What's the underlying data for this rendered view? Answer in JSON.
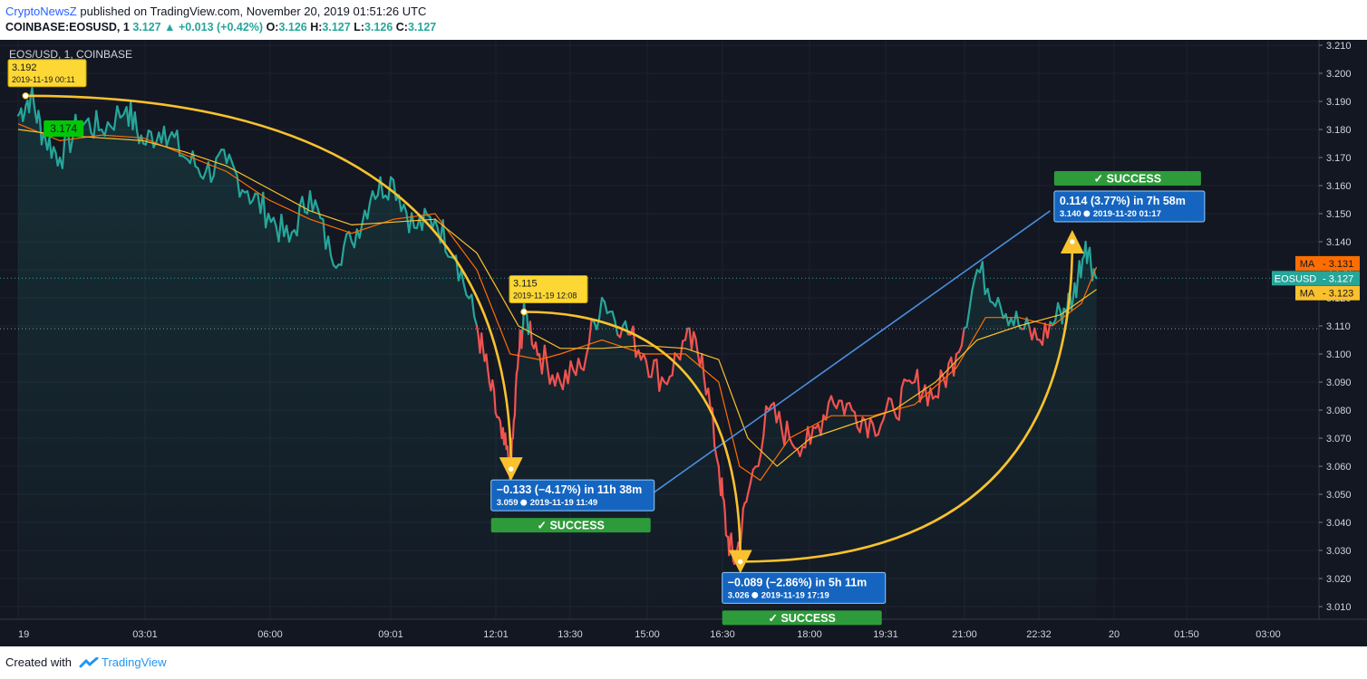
{
  "header": {
    "brand": "CryptoNewsZ",
    "published": "published on TradingView.com, November 20, 2019 01:51:26 UTC",
    "symbol": "COINBASE:EOSUSD, 1",
    "last": "3.127",
    "change": "+0.013 (+0.42%)",
    "o_label": "O:",
    "o": "3.126",
    "h_label": "H:",
    "h": "3.127",
    "l_label": "L:",
    "l": "3.126",
    "c_label": "C:",
    "c": "3.127"
  },
  "footer": {
    "created": "Created with",
    "tv": "TradingView"
  },
  "colors": {
    "background": "#131722",
    "up": "#26a69a",
    "down": "#ef5350",
    "ma_fast": "#ff6d00",
    "ma_slow": "#fbc02d",
    "arc": "#f9c22e",
    "trendline": "#4a90e2",
    "success": "#2e9b3a",
    "measure": "#1565c0"
  },
  "chart_data": {
    "type": "line",
    "title": "EOS/USD, 1, COINBASE",
    "x_ticks": [
      "19",
      "03:01",
      "06:00",
      "09:01",
      "12:01",
      "13:30",
      "15:00",
      "16:30",
      "18:00",
      "19:31",
      "21:00",
      "22:32",
      "20",
      "01:50",
      "03:00"
    ],
    "y_ticks": [
      "3.210",
      "3.200",
      "3.190",
      "3.180",
      "3.170",
      "3.160",
      "3.150",
      "3.140",
      "3.130",
      "3.120",
      "3.110",
      "3.100",
      "3.090",
      "3.080",
      "3.070",
      "3.060",
      "3.050",
      "3.040",
      "3.030",
      "3.020",
      "3.010"
    ],
    "ylim": [
      3.005,
      3.215
    ],
    "x_unit": "hours since 2019-11-19 00:00 UTC",
    "series": [
      {
        "name": "EOSUSD",
        "x": [
          0,
          0.3,
          0.6,
          1.0,
          1.5,
          2.0,
          2.6,
          3.0,
          3.5,
          4.0,
          4.5,
          5.0,
          5.5,
          6.0,
          6.5,
          7.0,
          7.5,
          8.0,
          8.5,
          9.0,
          9.5,
          10.0,
          10.5,
          11.0,
          11.3,
          11.6,
          11.82,
          12.0,
          12.15,
          12.5,
          13.0,
          13.5,
          14.0,
          14.5,
          15.0,
          15.5,
          16.0,
          16.4,
          16.8,
          17.0,
          17.2,
          17.5,
          18.0,
          18.5,
          19.0,
          19.5,
          20.0,
          20.5,
          21.0,
          21.5,
          22.0,
          22.5,
          23.0,
          23.5,
          24.0,
          24.5,
          25.0,
          25.3,
          25.6,
          25.86
        ],
        "y": [
          3.185,
          3.192,
          3.178,
          3.17,
          3.183,
          3.18,
          3.188,
          3.175,
          3.181,
          3.17,
          3.165,
          3.168,
          3.158,
          3.15,
          3.14,
          3.158,
          3.135,
          3.14,
          3.158,
          3.162,
          3.145,
          3.148,
          3.135,
          3.11,
          3.09,
          3.07,
          3.059,
          3.1,
          3.115,
          3.1,
          3.09,
          3.095,
          3.12,
          3.11,
          3.1,
          3.09,
          3.105,
          3.1,
          3.06,
          3.035,
          3.026,
          3.05,
          3.08,
          3.07,
          3.068,
          3.085,
          3.08,
          3.075,
          3.08,
          3.09,
          3.085,
          3.1,
          3.13,
          3.12,
          3.11,
          3.105,
          3.115,
          3.12,
          3.14,
          3.127
        ]
      },
      {
        "name": "MA",
        "x": [
          0,
          1,
          2,
          3,
          4,
          5,
          6,
          7,
          8,
          9,
          10,
          11,
          11.8,
          12.5,
          13,
          14,
          15,
          16,
          16.8,
          17.3,
          17.8,
          18.5,
          19.5,
          20.5,
          21.5,
          22.5,
          23.2,
          24,
          24.8,
          25.5,
          25.86
        ],
        "y": [
          3.182,
          3.176,
          3.178,
          3.177,
          3.171,
          3.165,
          3.155,
          3.148,
          3.143,
          3.148,
          3.15,
          3.13,
          3.1,
          3.098,
          3.1,
          3.105,
          3.1,
          3.1,
          3.09,
          3.06,
          3.055,
          3.07,
          3.078,
          3.078,
          3.082,
          3.095,
          3.113,
          3.113,
          3.11,
          3.118,
          3.131
        ]
      },
      {
        "name": "MA",
        "x": [
          0,
          1,
          2,
          3,
          4,
          5,
          6,
          7,
          8,
          9,
          10,
          11,
          12,
          13,
          14,
          15,
          16,
          16.8,
          17.5,
          18.2,
          19,
          20,
          21,
          22,
          23,
          24,
          25,
          25.86
        ],
        "y": [
          3.18,
          3.178,
          3.177,
          3.176,
          3.172,
          3.167,
          3.159,
          3.151,
          3.146,
          3.147,
          3.148,
          3.136,
          3.11,
          3.102,
          3.102,
          3.103,
          3.102,
          3.098,
          3.07,
          3.06,
          3.07,
          3.075,
          3.08,
          3.09,
          3.105,
          3.11,
          3.114,
          3.123
        ]
      }
    ],
    "price_labels": [
      {
        "text": "MA",
        "value": "3.131"
      },
      {
        "text": "EOSUSD",
        "value": "3.127"
      },
      {
        "text": "MA",
        "value": "3.123"
      }
    ],
    "price_lines": [
      3.127,
      3.109
    ],
    "point_labels": [
      {
        "value": "3.192",
        "date": "2019-11-19 00:11",
        "x": 0.18,
        "y": 3.192
      },
      {
        "value": "3.174",
        "x": 0.7,
        "y": 3.18
      },
      {
        "value": "3.115",
        "date": "2019-11-19 12:08",
        "x": 12.13,
        "y": 3.115
      }
    ],
    "measurements": [
      {
        "line1": "−0.133 (−4.17%) in 11h 38m",
        "line2": "3.059",
        "date": "2019-11-19  11:49",
        "status": "SUCCESS",
        "from_x": 0.18,
        "from_y": 3.192,
        "to_x": 11.82,
        "to_y": 3.059
      },
      {
        "line1": "−0.089 (−2.86%) in 5h 11m",
        "line2": "3.026",
        "date": "2019-11-19  17:19",
        "status": "SUCCESS",
        "from_x": 12.13,
        "from_y": 3.115,
        "to_x": 17.32,
        "to_y": 3.026
      },
      {
        "line1": "0.114 (3.77%) in 7h 58m",
        "line2": "3.140",
        "date": "2019-11-20  01:17",
        "status": "SUCCESS",
        "from_x": 17.32,
        "from_y": 3.026,
        "to_x": 25.28,
        "to_y": 3.14
      }
    ],
    "trendline": {
      "x1": 14.9,
      "y1": 3.047,
      "x2": 24.75,
      "y2": 3.151
    }
  }
}
